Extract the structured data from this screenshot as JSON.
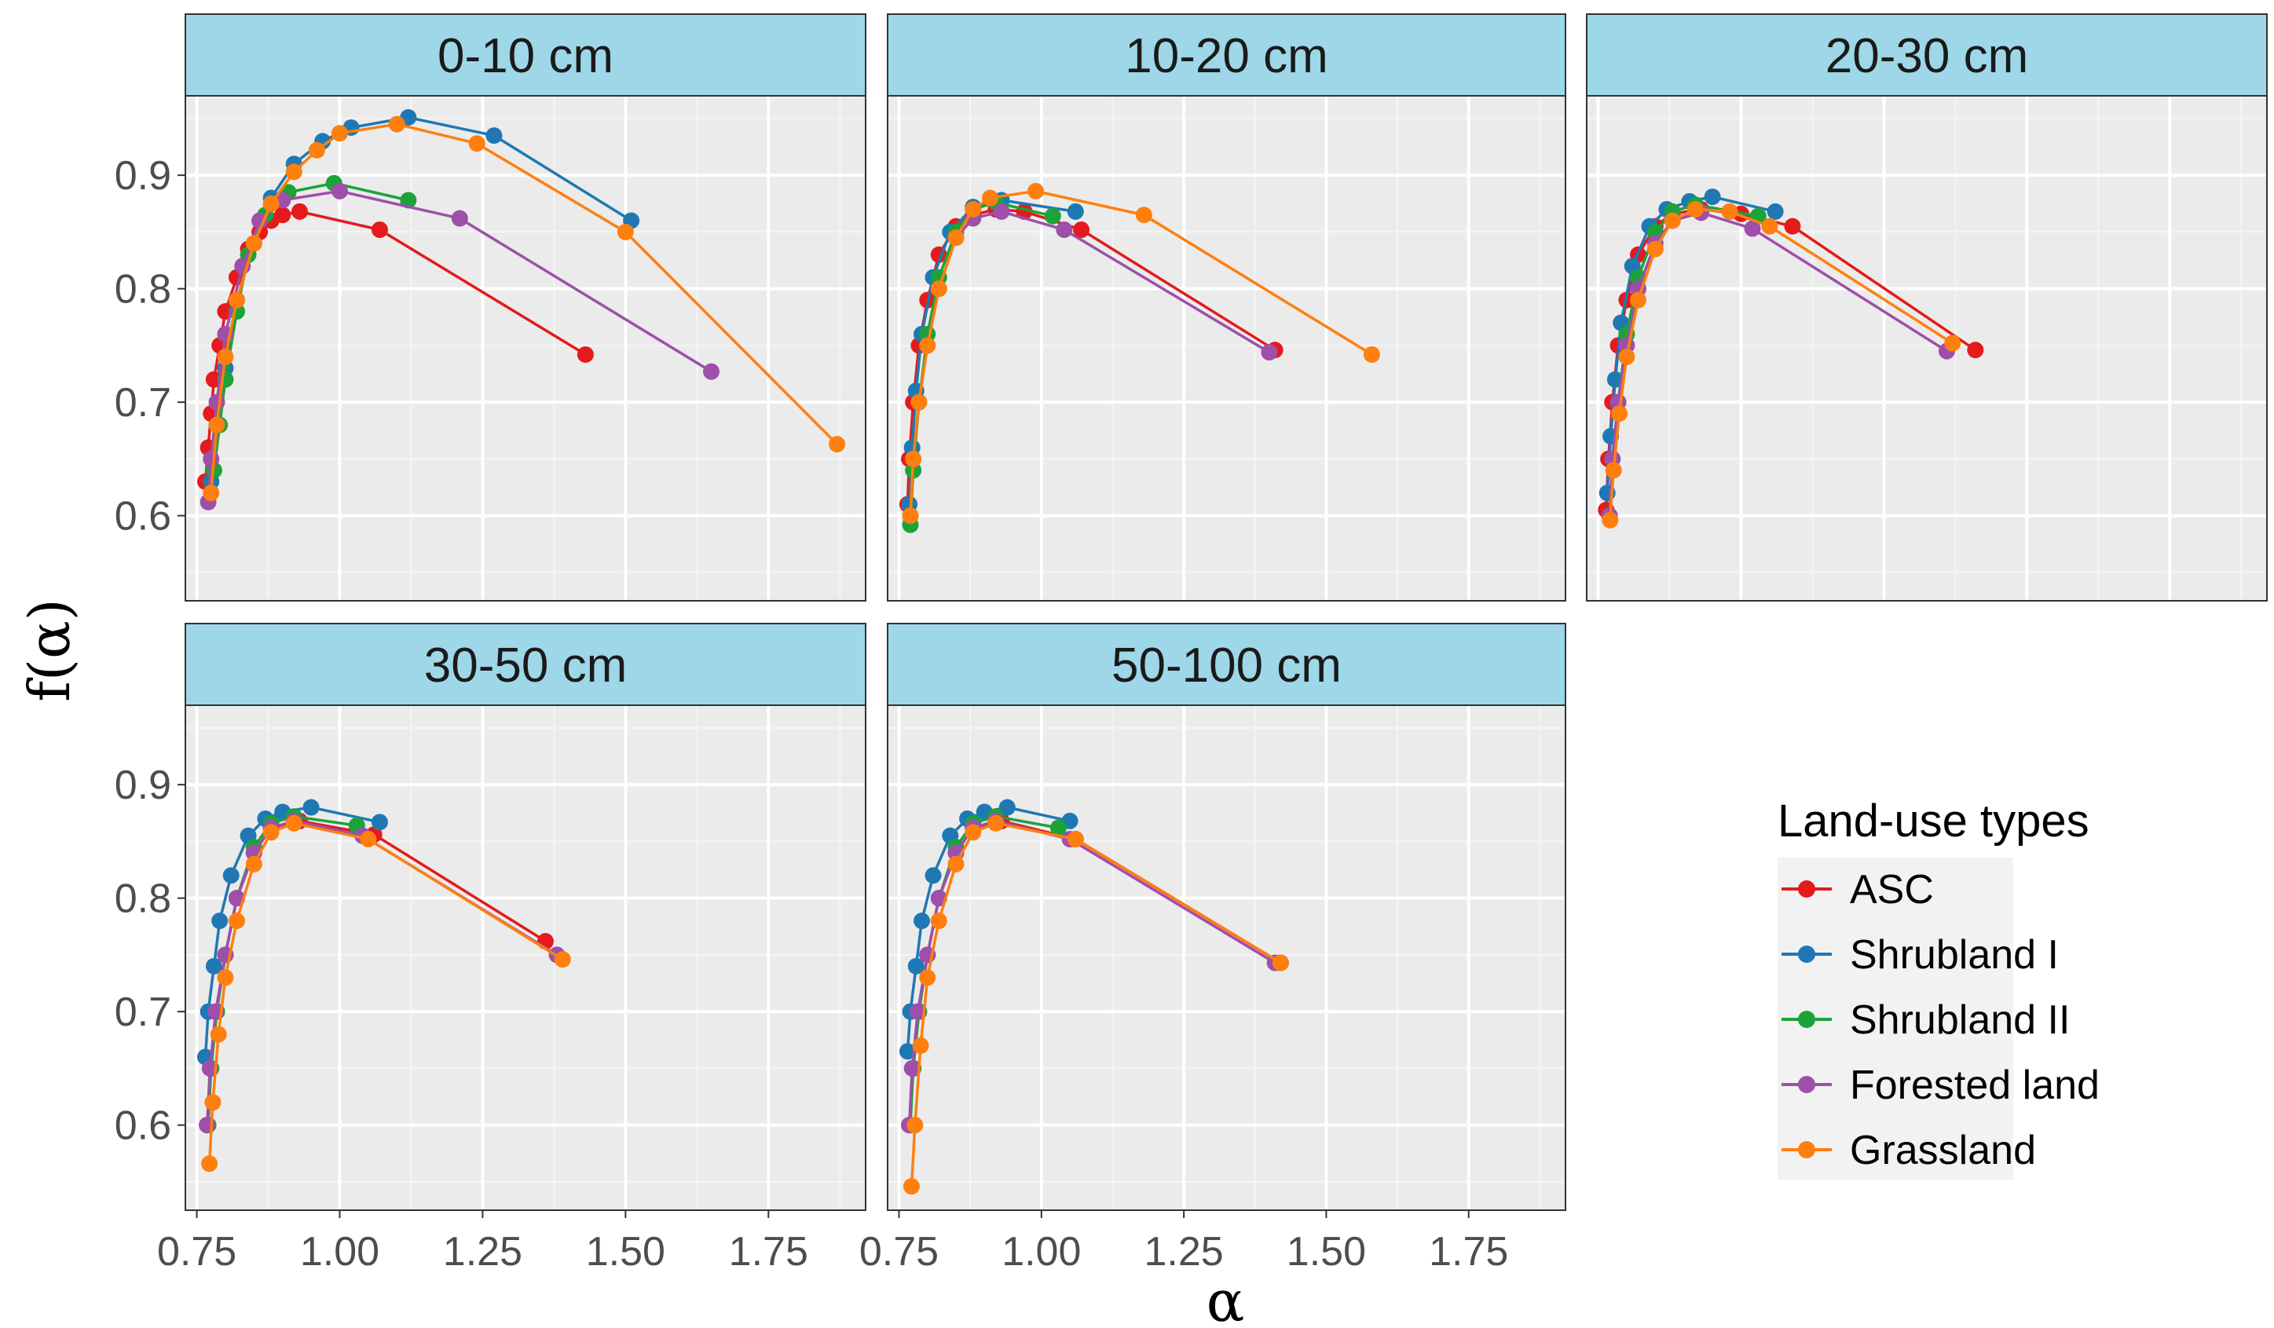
{
  "chart_data": {
    "type": "line",
    "title": "",
    "xlabel": "α",
    "ylabel": "f(α)",
    "xlim": [
      0.73,
      1.92
    ],
    "ylim": [
      0.525,
      0.97
    ],
    "x_ticks": [
      "0.75",
      "1.00",
      "1.25",
      "1.50",
      "1.75"
    ],
    "x_tick_values": [
      0.75,
      1.0,
      1.25,
      1.5,
      1.75
    ],
    "y_ticks": [
      "0.6",
      "0.7",
      "0.8",
      "0.9"
    ],
    "y_tick_values": [
      0.6,
      0.7,
      0.8,
      0.9
    ],
    "grid": true,
    "legend": {
      "title": "Land-use types",
      "position": "right",
      "entries": [
        {
          "name": "ASC",
          "color": "#E41A1C"
        },
        {
          "name": "Shrubland I",
          "color": "#1F78B4"
        },
        {
          "name": "Shrubland II",
          "color": "#1BA339"
        },
        {
          "name": "Forested land",
          "color": "#9E4FAA"
        },
        {
          "name": "Grassland",
          "color": "#FF7F0E"
        }
      ]
    },
    "panels": [
      {
        "label": "0-10 cm",
        "series": [
          {
            "name": "ASC",
            "x": [
              0.765,
              0.77,
              0.775,
              0.78,
              0.79,
              0.8,
              0.82,
              0.84,
              0.86,
              0.88,
              0.9,
              0.93,
              1.07,
              1.43
            ],
            "y": [
              0.63,
              0.66,
              0.69,
              0.72,
              0.75,
              0.78,
              0.81,
              0.835,
              0.85,
              0.86,
              0.865,
              0.868,
              0.852,
              0.742
            ]
          },
          {
            "name": "Shrubland I",
            "x": [
              0.775,
              0.785,
              0.8,
              0.82,
              0.85,
              0.88,
              0.92,
              0.97,
              1.02,
              1.12,
              1.27,
              1.51
            ],
            "y": [
              0.63,
              0.68,
              0.73,
              0.79,
              0.84,
              0.88,
              0.91,
              0.93,
              0.942,
              0.951,
              0.935,
              0.86
            ]
          },
          {
            "name": "Shrubland II",
            "x": [
              0.78,
              0.79,
              0.8,
              0.82,
              0.84,
              0.87,
              0.91,
              0.99,
              1.12
            ],
            "y": [
              0.64,
              0.68,
              0.72,
              0.78,
              0.83,
              0.865,
              0.885,
              0.893,
              0.878
            ]
          },
          {
            "name": "Forested land",
            "x": [
              0.77,
              0.775,
              0.785,
              0.8,
              0.83,
              0.86,
              0.9,
              1.0,
              1.21,
              1.65
            ],
            "y": [
              0.612,
              0.65,
              0.7,
              0.76,
              0.82,
              0.86,
              0.878,
              0.886,
              0.862,
              0.727
            ]
          },
          {
            "name": "Grassland",
            "x": [
              0.775,
              0.785,
              0.8,
              0.82,
              0.85,
              0.88,
              0.92,
              0.96,
              1.0,
              1.1,
              1.24,
              1.5,
              1.87
            ],
            "y": [
              0.62,
              0.68,
              0.74,
              0.79,
              0.84,
              0.875,
              0.903,
              0.922,
              0.937,
              0.945,
              0.928,
              0.85,
              0.663
            ]
          }
        ]
      },
      {
        "label": "10-20 cm",
        "series": [
          {
            "name": "ASC",
            "x": [
              0.765,
              0.768,
              0.775,
              0.785,
              0.8,
              0.82,
              0.85,
              0.88,
              0.92,
              0.97,
              1.07,
              1.41
            ],
            "y": [
              0.61,
              0.65,
              0.7,
              0.75,
              0.79,
              0.83,
              0.855,
              0.865,
              0.87,
              0.868,
              0.852,
              0.746
            ]
          },
          {
            "name": "Shrubland I",
            "x": [
              0.768,
              0.773,
              0.78,
              0.79,
              0.81,
              0.84,
              0.88,
              0.93,
              1.06
            ],
            "y": [
              0.61,
              0.66,
              0.71,
              0.76,
              0.81,
              0.85,
              0.872,
              0.878,
              0.868
            ]
          },
          {
            "name": "Shrubland II",
            "x": [
              0.77,
              0.775,
              0.785,
              0.8,
              0.82,
              0.85,
              0.88,
              0.92,
              1.02
            ],
            "y": [
              0.592,
              0.64,
              0.7,
              0.76,
              0.81,
              0.85,
              0.87,
              0.876,
              0.864
            ]
          },
          {
            "name": "Forested land",
            "x": [
              0.77,
              0.775,
              0.785,
              0.8,
              0.82,
              0.85,
              0.88,
              0.93,
              1.04,
              1.4
            ],
            "y": [
              0.6,
              0.65,
              0.7,
              0.75,
              0.8,
              0.845,
              0.862,
              0.868,
              0.852,
              0.744
            ]
          },
          {
            "name": "Grassland",
            "x": [
              0.77,
              0.775,
              0.785,
              0.8,
              0.82,
              0.85,
              0.88,
              0.91,
              0.99,
              1.18,
              1.58
            ],
            "y": [
              0.6,
              0.65,
              0.7,
              0.75,
              0.8,
              0.845,
              0.87,
              0.88,
              0.886,
              0.865,
              0.742
            ]
          }
        ]
      },
      {
        "label": "20-30 cm",
        "series": [
          {
            "name": "ASC",
            "x": [
              0.764,
              0.768,
              0.775,
              0.785,
              0.8,
              0.82,
              0.85,
              0.88,
              0.93,
              1.0,
              1.09,
              1.41
            ],
            "y": [
              0.605,
              0.65,
              0.7,
              0.75,
              0.79,
              0.83,
              0.855,
              0.866,
              0.87,
              0.866,
              0.855,
              0.746
            ]
          },
          {
            "name": "Shrubland I",
            "x": [
              0.766,
              0.772,
              0.78,
              0.79,
              0.81,
              0.84,
              0.87,
              0.91,
              0.95,
              1.06
            ],
            "y": [
              0.62,
              0.67,
              0.72,
              0.77,
              0.82,
              0.855,
              0.87,
              0.877,
              0.881,
              0.868
            ]
          },
          {
            "name": "Shrubland II",
            "x": [
              0.77,
              0.775,
              0.785,
              0.8,
              0.82,
              0.85,
              0.88,
              0.92,
              1.03
            ],
            "y": [
              0.6,
              0.65,
              0.7,
              0.76,
              0.81,
              0.85,
              0.868,
              0.874,
              0.864
            ]
          },
          {
            "name": "Forested land",
            "x": [
              0.77,
              0.775,
              0.785,
              0.8,
              0.82,
              0.85,
              0.88,
              0.93,
              1.02,
              1.36
            ],
            "y": [
              0.6,
              0.65,
              0.7,
              0.75,
              0.8,
              0.84,
              0.86,
              0.867,
              0.853,
              0.745
            ]
          },
          {
            "name": "Grassland",
            "x": [
              0.771,
              0.777,
              0.787,
              0.8,
              0.82,
              0.85,
              0.88,
              0.92,
              0.98,
              1.05,
              1.37
            ],
            "y": [
              0.596,
              0.64,
              0.69,
              0.74,
              0.79,
              0.835,
              0.86,
              0.87,
              0.868,
              0.855,
              0.752
            ]
          }
        ]
      },
      {
        "label": "30-50 cm",
        "series": [
          {
            "name": "ASC",
            "x": [
              0.768,
              0.775,
              0.785,
              0.8,
              0.82,
              0.85,
              0.88,
              0.93,
              1.06,
              1.36
            ],
            "y": [
              0.6,
              0.65,
              0.7,
              0.75,
              0.8,
              0.84,
              0.862,
              0.868,
              0.856,
              0.762
            ]
          },
          {
            "name": "Shrubland I",
            "x": [
              0.765,
              0.77,
              0.78,
              0.79,
              0.81,
              0.84,
              0.87,
              0.9,
              0.95,
              1.07
            ],
            "y": [
              0.66,
              0.7,
              0.74,
              0.78,
              0.82,
              0.855,
              0.87,
              0.876,
              0.88,
              0.867
            ]
          },
          {
            "name": "Shrubland II",
            "x": [
              0.77,
              0.775,
              0.785,
              0.8,
              0.82,
              0.85,
              0.88,
              0.92,
              1.03
            ],
            "y": [
              0.6,
              0.65,
              0.7,
              0.75,
              0.8,
              0.845,
              0.866,
              0.872,
              0.864
            ]
          },
          {
            "name": "Forested land",
            "x": [
              0.768,
              0.773,
              0.783,
              0.8,
              0.82,
              0.85,
              0.88,
              0.92,
              1.04,
              1.38
            ],
            "y": [
              0.6,
              0.65,
              0.7,
              0.75,
              0.8,
              0.84,
              0.862,
              0.868,
              0.855,
              0.75
            ]
          },
          {
            "name": "Grassland",
            "x": [
              0.772,
              0.778,
              0.788,
              0.8,
              0.82,
              0.85,
              0.88,
              0.92,
              1.05,
              1.39
            ],
            "y": [
              0.566,
              0.62,
              0.68,
              0.73,
              0.78,
              0.83,
              0.858,
              0.866,
              0.852,
              0.746
            ]
          }
        ]
      },
      {
        "label": "50-100 cm",
        "series": [
          {
            "name": "ASC",
            "x": [
              0.768,
              0.775,
              0.785,
              0.8,
              0.82,
              0.85,
              0.88,
              0.93,
              1.06,
              1.42
            ],
            "y": [
              0.6,
              0.65,
              0.7,
              0.75,
              0.8,
              0.84,
              0.862,
              0.868,
              0.852,
              0.743
            ]
          },
          {
            "name": "Shrubland I",
            "x": [
              0.765,
              0.77,
              0.78,
              0.79,
              0.81,
              0.84,
              0.87,
              0.9,
              0.94,
              1.05
            ],
            "y": [
              0.665,
              0.7,
              0.74,
              0.78,
              0.82,
              0.855,
              0.87,
              0.876,
              0.88,
              0.868
            ]
          },
          {
            "name": "Shrubland II",
            "x": [
              0.77,
              0.775,
              0.785,
              0.8,
              0.82,
              0.85,
              0.88,
              0.92,
              1.03
            ],
            "y": [
              0.6,
              0.65,
              0.7,
              0.75,
              0.8,
              0.845,
              0.866,
              0.872,
              0.862
            ]
          },
          {
            "name": "Forested land",
            "x": [
              0.768,
              0.773,
              0.783,
              0.8,
              0.82,
              0.85,
              0.88,
              0.92,
              1.05,
              1.41
            ],
            "y": [
              0.6,
              0.65,
              0.7,
              0.75,
              0.8,
              0.84,
              0.862,
              0.868,
              0.852,
              0.743
            ]
          },
          {
            "name": "Grassland",
            "x": [
              0.772,
              0.778,
              0.788,
              0.8,
              0.82,
              0.85,
              0.88,
              0.92,
              1.06,
              1.42
            ],
            "y": [
              0.546,
              0.6,
              0.67,
              0.73,
              0.78,
              0.83,
              0.858,
              0.866,
              0.852,
              0.743
            ]
          }
        ]
      }
    ]
  }
}
